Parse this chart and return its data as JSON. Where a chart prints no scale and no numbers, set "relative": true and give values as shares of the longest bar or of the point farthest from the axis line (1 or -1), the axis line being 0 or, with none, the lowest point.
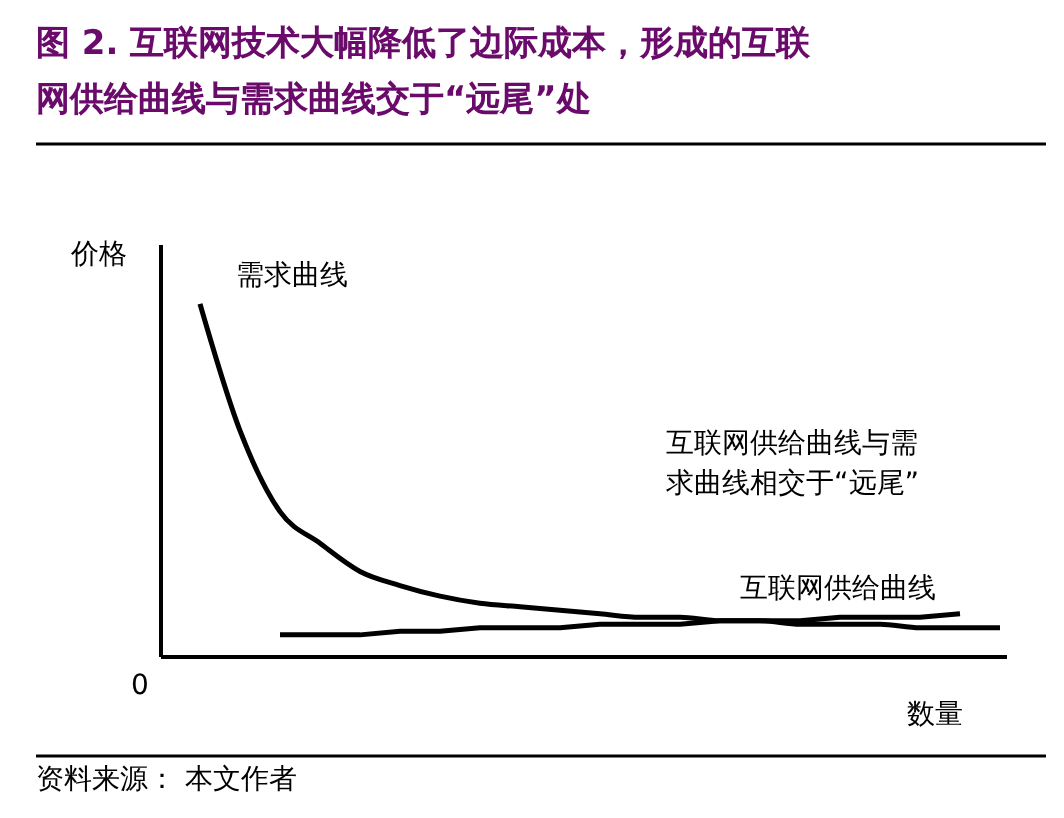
{
  "chart_data": {
    "type": "line",
    "relative": true,
    "title": "图 2. 互联网技术大幅降低了边际成本，形成的互联网供给曲线与需求曲线交于“远尾”处",
    "xlabel": "数量",
    "ylabel": "价格",
    "categories": [
      null,
      null,
      null,
      null,
      null,
      null,
      null,
      null,
      null,
      null,
      null,
      null,
      null,
      null,
      null,
      null,
      null,
      null,
      null,
      null,
      null
    ],
    "series": [
      {
        "name": "需求曲线",
        "color": "#000000",
        "values": [
          1,
          0.64,
          0.41,
          0.32,
          0.24,
          0.2,
          0.17,
          0.15,
          0.14,
          0.13,
          0.12,
          0.11,
          0.11,
          0.1,
          0.1,
          0.09,
          0.09,
          0.09,
          0.08,
          0.08,
          0.08
        ]
      },
      {
        "name": "互联网供给曲线",
        "color": "#000000",
        "values": [
          null,
          null,
          0.06,
          0.06,
          0.06,
          0.07,
          0.07,
          0.08,
          0.08,
          0.08,
          0.09,
          0.09,
          0.09,
          0.1,
          0.1,
          0.1,
          0.11,
          0.11,
          0.11,
          0.12,
          null
        ]
      }
    ],
    "annotations": [
      "互联网供给曲线与需求曲线相交于“远尾”",
      "0",
      "资料来源：   本文作者"
    ],
    "grid": false,
    "marker": "none",
    "line_style": "solid"
  }
}
